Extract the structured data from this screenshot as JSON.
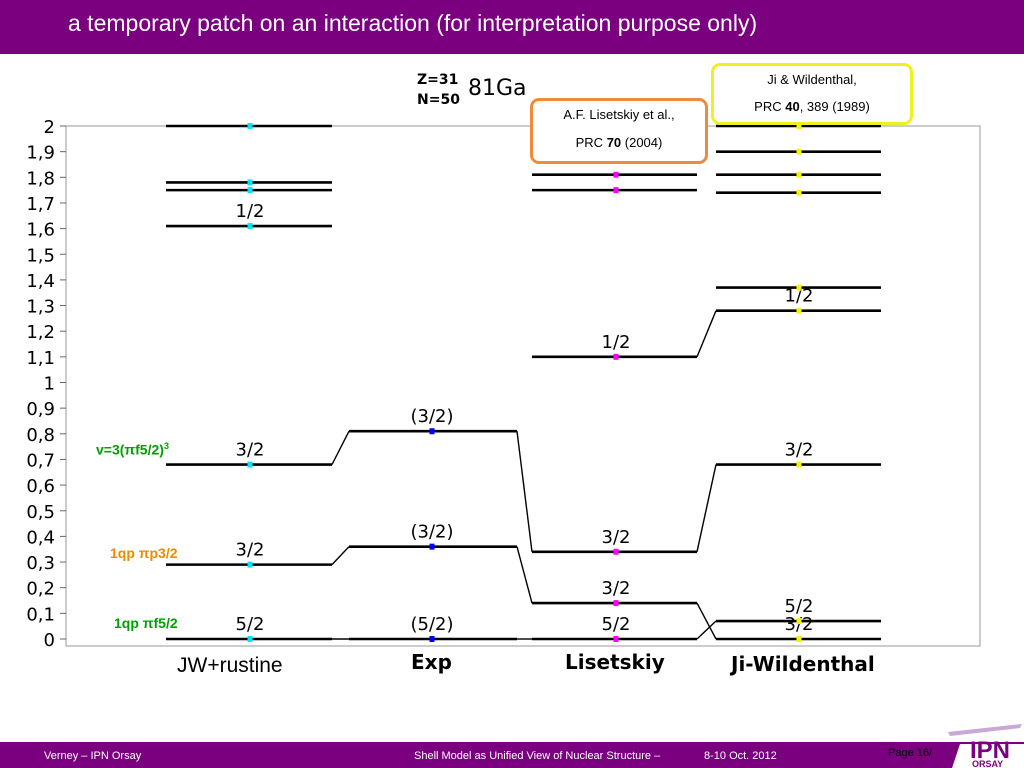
{
  "header": {
    "title": "a temporary patch on an interaction (for interpretation purpose only)"
  },
  "footer": {
    "author": "Verney – IPN Orsay",
    "talk": "Shell Model as Unified View of Nuclear Structure –",
    "dates": "8-10 Oct. 2012",
    "page": "Page 16/"
  },
  "logo": {
    "letters": "IPN",
    "sub": "ORSAY"
  },
  "nucleus": {
    "z": "Z=31",
    "n": "N=50",
    "name": "81Ga"
  },
  "references": {
    "lisetskiy": {
      "line1": "A.F. Lisetskiy et al.,",
      "journal": "PRC ",
      "volume": "70",
      "rest": " (2004)"
    },
    "ji": {
      "line1": "Ji & Wildenthal,",
      "journal": "PRC ",
      "volume": "40",
      "rest": ", 389 (1989)"
    }
  },
  "annotations": {
    "v3": {
      "prefix": "v=3(",
      "pi": "π",
      "suffix": "f5/2)",
      "sup": "3"
    },
    "p32": {
      "prefix": "1qp ",
      "pi": "π",
      "suffix": "p3/2"
    },
    "f52": {
      "prefix": "1qp ",
      "pi": "π",
      "suffix": "f5/2"
    }
  },
  "columns": [
    {
      "name": "JW+rustine"
    },
    {
      "name": "Exp"
    },
    {
      "name": "Lisetskiy"
    },
    {
      "name": "Ji-Wildenthal"
    }
  ],
  "colors": {
    "header": "#7a0080",
    "green": "#00a000",
    "orange": "#f08a00",
    "jw_marker": "#00e5ff",
    "exp_marker": "#0000ff",
    "lis_marker": "#ff00ff",
    "ji_marker": "#f5f500"
  },
  "chart_data": {
    "type": "level-scheme",
    "yaxis": {
      "range": [
        0,
        2
      ],
      "ticks": [
        "0",
        "0,1",
        "0,2",
        "0,3",
        "0,4",
        "0,5",
        "0,6",
        "0,7",
        "0,8",
        "0,9",
        "1",
        "1,1",
        "1,2",
        "1,3",
        "1,4",
        "1,5",
        "1,6",
        "1,7",
        "1,8",
        "1,9",
        "2"
      ]
    },
    "levels": {
      "JW+rustine": [
        {
          "e": 0.0,
          "label": "5/2"
        },
        {
          "e": 0.29,
          "label": "3/2"
        },
        {
          "e": 0.68,
          "label": "3/2"
        },
        {
          "e": 1.61,
          "label": "1/2"
        },
        {
          "e": 1.75,
          "label": ""
        },
        {
          "e": 1.78,
          "label": ""
        },
        {
          "e": 2.0,
          "label": ""
        }
      ],
      "Exp": [
        {
          "e": 0.0,
          "label": "(5/2)"
        },
        {
          "e": 0.36,
          "label": "(3/2)"
        },
        {
          "e": 0.81,
          "label": "(3/2)"
        }
      ],
      "Lisetskiy": [
        {
          "e": 0.0,
          "label": "5/2"
        },
        {
          "e": 0.14,
          "label": "3/2"
        },
        {
          "e": 0.34,
          "label": "3/2"
        },
        {
          "e": 1.1,
          "label": "1/2"
        },
        {
          "e": 1.75,
          "label": ""
        },
        {
          "e": 1.81,
          "label": ""
        }
      ],
      "Ji-Wildenthal": [
        {
          "e": 0.0,
          "label": "3/2"
        },
        {
          "e": 0.07,
          "label": "5/2"
        },
        {
          "e": 0.68,
          "label": "3/2"
        },
        {
          "e": 1.28,
          "label": "1/2"
        },
        {
          "e": 1.37,
          "label": ""
        },
        {
          "e": 1.74,
          "label": ""
        },
        {
          "e": 1.81,
          "label": ""
        },
        {
          "e": 1.9,
          "label": ""
        },
        {
          "e": 2.0,
          "label": ""
        }
      ]
    }
  }
}
